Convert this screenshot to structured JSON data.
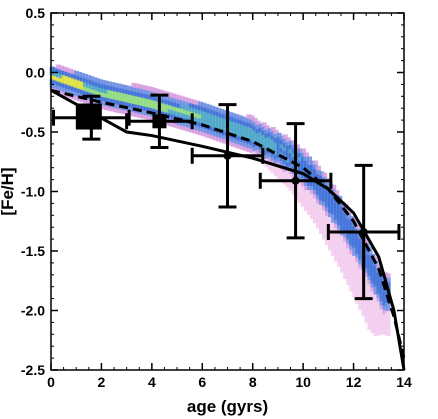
{
  "chart_data": {
    "type": "scatter",
    "title": "",
    "xlabel": "age (gyrs)",
    "ylabel": "[Fe/H]",
    "xlim": [
      0,
      14
    ],
    "ylim": [
      -2.5,
      0.5
    ],
    "x_ticks": [
      "0",
      "2",
      "4",
      "6",
      "8",
      "10",
      "12",
      "14"
    ],
    "y_ticks": [
      "0.5",
      "0.0",
      "-0.5",
      "-1.0",
      "-1.5",
      "-2.0",
      "-2.5"
    ],
    "grid": false,
    "series": [
      {
        "style": "error_bars",
        "color": "#000000",
        "points": [
          {
            "x": 1.6,
            "y": -0.38,
            "xerr": 1.5,
            "yerr": 0.18
          },
          {
            "x": 4.3,
            "y": -0.41,
            "xerr": 1.3,
            "yerr": 0.22
          },
          {
            "x": 7.0,
            "y": -0.7,
            "xerr": 1.4,
            "yerr": 0.43
          },
          {
            "x": 9.7,
            "y": -0.91,
            "xerr": 1.4,
            "yerr": 0.48
          },
          {
            "x": 12.4,
            "y": -1.34,
            "xerr": 1.4,
            "yerr": 0.56
          }
        ]
      },
      {
        "style": "square_markers",
        "color": "#000000",
        "points": [
          {
            "x": 1.5,
            "y": -0.37,
            "size": "large"
          },
          {
            "x": 4.3,
            "y": -0.41,
            "size": "medium"
          }
        ]
      },
      {
        "style": "solid_line",
        "color": "#000000",
        "x": [
          0.0,
          3.0,
          4.0,
          6.0,
          8.0,
          10.0,
          11.0,
          12.0,
          13.0,
          13.6,
          14.0
        ],
        "y": [
          -0.15,
          -0.5,
          -0.53,
          -0.62,
          -0.72,
          -0.85,
          -0.98,
          -1.18,
          -1.55,
          -2.0,
          -2.5
        ]
      },
      {
        "style": "dashed_line",
        "color": "#000000",
        "x": [
          0.0,
          2.0,
          4.0,
          6.0,
          8.0,
          10.0,
          11.0,
          12.0,
          13.0,
          13.6,
          14.0
        ],
        "y": [
          -0.15,
          -0.25,
          -0.34,
          -0.44,
          -0.58,
          -0.8,
          -0.98,
          -1.25,
          -1.65,
          -2.05,
          -2.4
        ]
      },
      {
        "style": "density_band",
        "colormap": [
          "#f2ccef",
          "#d79ee0",
          "#6f8fe2",
          "#3f71d8",
          "#4ea6c8",
          "#90db80",
          "#e0e040"
        ],
        "ridge_x": [
          0.0,
          2.0,
          4.0,
          6.0,
          8.0,
          9.5,
          10.5,
          11.5,
          12.5,
          13.2
        ],
        "ridge_y": [
          -0.03,
          -0.17,
          -0.26,
          -0.38,
          -0.52,
          -0.7,
          -0.9,
          -1.2,
          -1.55,
          -1.85
        ]
      }
    ]
  }
}
